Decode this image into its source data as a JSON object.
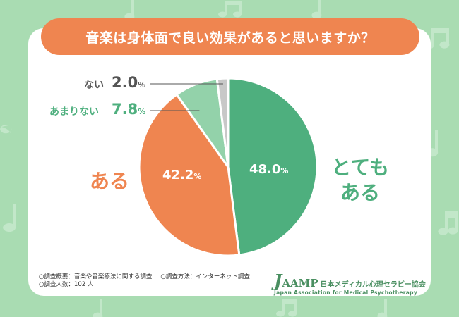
{
  "title": "音楽は身体面で良い効果があると思いますか？",
  "chart_data": {
    "type": "pie",
    "title": "音楽は身体面で良い効果があると思いますか？",
    "slices": [
      {
        "label": "とてもある",
        "value": 48.0,
        "color": "#4eaf7e"
      },
      {
        "label": "ある",
        "value": 42.2,
        "color": "#ef8550"
      },
      {
        "label": "あまりない",
        "value": 7.8,
        "color": "#93d2aa"
      },
      {
        "label": "ない",
        "value": 2.0,
        "color": "#c8c8c8"
      }
    ]
  },
  "labels": {
    "totemo_line1": "とても",
    "totemo_line2": "ある",
    "aru": "ある",
    "amari": "あまりない",
    "nai": "ない",
    "totemo_pct": "48.0",
    "aru_pct": "42.2",
    "amari_pct": "7.8",
    "nai_pct": "2.0",
    "pct_sign": "%"
  },
  "footer": {
    "line1_a": "○調査概要：音楽や音楽療法に関する調査",
    "line1_b": "○調査方法：インターネット調査",
    "line2": "○調査人数：102 人"
  },
  "logo": {
    "j": "J",
    "main": "AAMP",
    "jp": "日本メディカル心理セラピー協会",
    "en": "Japan Association for Medical Psychotherapy"
  },
  "colors": {
    "background": "#a9dcb2",
    "accent_orange": "#ef8550",
    "accent_green": "#4eaf7e",
    "light_green": "#93d2aa",
    "gray": "#c8c8c8"
  }
}
